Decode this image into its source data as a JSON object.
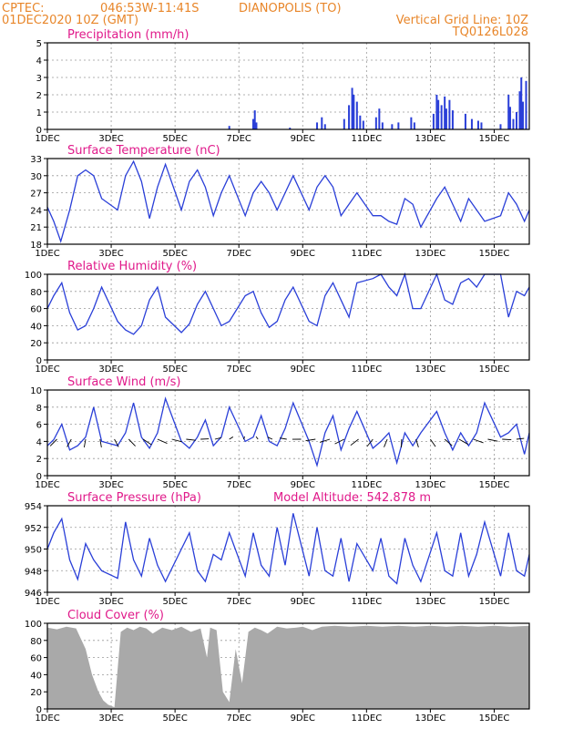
{
  "header": {
    "source": "CPTEC:",
    "coords": "046:53W-11:41S",
    "location": "DIANOPOLIS (TO)",
    "run": "01DEC2020 10Z (GMT)",
    "grid_note": "Vertical Grid Line: 10Z",
    "model": "TQ0126L028"
  },
  "colors": {
    "header": "#e8862a",
    "title": "#e0198a",
    "line": "#2a3fd8",
    "cloud": "#a9a9a9"
  },
  "x_labels": [
    "1DEC",
    "3DEC",
    "5DEC",
    "7DEC",
    "9DEC",
    "11DEC",
    "13DEC",
    "15DEC"
  ],
  "x_label_days": [
    1,
    3,
    5,
    7,
    9,
    11,
    13,
    15
  ],
  "x_range_days": [
    1,
    16.1
  ],
  "chart_data": [
    {
      "type": "bar",
      "title": "Precipitation (mm/h)",
      "ylim": [
        0,
        5
      ],
      "yticks": [
        "0",
        "1",
        "2",
        "3",
        "4",
        "5"
      ],
      "bars": [
        {
          "day": 6.7,
          "v": 0.2
        },
        {
          "day": 7.45,
          "v": 0.6
        },
        {
          "day": 7.5,
          "v": 1.1
        },
        {
          "day": 7.55,
          "v": 0.4
        },
        {
          "day": 8.6,
          "v": 0.1
        },
        {
          "day": 9.45,
          "v": 0.4
        },
        {
          "day": 9.6,
          "v": 0.7
        },
        {
          "day": 9.7,
          "v": 0.3
        },
        {
          "day": 10.3,
          "v": 0.6
        },
        {
          "day": 10.45,
          "v": 1.4
        },
        {
          "day": 10.55,
          "v": 2.4
        },
        {
          "day": 10.6,
          "v": 2.0
        },
        {
          "day": 10.7,
          "v": 1.6
        },
        {
          "day": 10.8,
          "v": 0.8
        },
        {
          "day": 10.9,
          "v": 0.5
        },
        {
          "day": 11.3,
          "v": 0.7
        },
        {
          "day": 11.4,
          "v": 1.2
        },
        {
          "day": 11.5,
          "v": 0.4
        },
        {
          "day": 11.8,
          "v": 0.3
        },
        {
          "day": 12.0,
          "v": 0.4
        },
        {
          "day": 12.4,
          "v": 0.7
        },
        {
          "day": 12.5,
          "v": 0.4
        },
        {
          "day": 13.1,
          "v": 0.9
        },
        {
          "day": 13.2,
          "v": 2.0
        },
        {
          "day": 13.25,
          "v": 1.7
        },
        {
          "day": 13.35,
          "v": 1.4
        },
        {
          "day": 13.45,
          "v": 1.9
        },
        {
          "day": 13.5,
          "v": 1.2
        },
        {
          "day": 13.6,
          "v": 1.7
        },
        {
          "day": 13.7,
          "v": 1.1
        },
        {
          "day": 14.1,
          "v": 0.9
        },
        {
          "day": 14.3,
          "v": 0.6
        },
        {
          "day": 14.5,
          "v": 0.5
        },
        {
          "day": 14.6,
          "v": 0.4
        },
        {
          "day": 15.2,
          "v": 0.3
        },
        {
          "day": 15.45,
          "v": 2.0
        },
        {
          "day": 15.5,
          "v": 1.3
        },
        {
          "day": 15.6,
          "v": 0.6
        },
        {
          "day": 15.7,
          "v": 1.0
        },
        {
          "day": 15.8,
          "v": 2.2
        },
        {
          "day": 15.85,
          "v": 3.0
        },
        {
          "day": 15.9,
          "v": 1.6
        },
        {
          "day": 16.0,
          "v": 2.8
        }
      ]
    },
    {
      "type": "line",
      "title": "Surface Temperature (nC)",
      "ylim": [
        18,
        33
      ],
      "yticks": [
        "18",
        "21",
        "24",
        "27",
        "30",
        "33"
      ],
      "x": [
        1,
        1.2,
        1.42,
        1.7,
        1.95,
        2.2,
        2.45,
        2.7,
        3.2,
        3.45,
        3.7,
        3.95,
        4.2,
        4.45,
        4.7,
        5.2,
        5.45,
        5.7,
        5.95,
        6.2,
        6.45,
        6.7,
        7.2,
        7.45,
        7.7,
        7.95,
        8.2,
        8.45,
        8.7,
        9.2,
        9.45,
        9.7,
        9.95,
        10.2,
        10.45,
        10.7,
        11.2,
        11.45,
        11.7,
        11.95,
        12.2,
        12.45,
        12.7,
        13.2,
        13.45,
        13.7,
        13.95,
        14.2,
        14.45,
        14.7,
        15.2,
        15.45,
        15.7,
        15.95,
        16.1
      ],
      "y": [
        24.5,
        22,
        18.5,
        24,
        30,
        31,
        30,
        26,
        24,
        30,
        32.5,
        29,
        22.5,
        28,
        32,
        24,
        29,
        31,
        28,
        23,
        27,
        30,
        23,
        27,
        29,
        27,
        24,
        27,
        30,
        24,
        28,
        30,
        28,
        23,
        25,
        27,
        23,
        23,
        22,
        21.5,
        26,
        25,
        21,
        26,
        28,
        25,
        22,
        26,
        24,
        22,
        23,
        27,
        25,
        22,
        24
      ]
    },
    {
      "type": "line",
      "title": "Relative Humidity (%)",
      "ylim": [
        0,
        100
      ],
      "yticks": [
        "0",
        "20",
        "40",
        "60",
        "80",
        "100"
      ],
      "x": [
        1,
        1.2,
        1.45,
        1.7,
        1.95,
        2.2,
        2.45,
        2.7,
        3.2,
        3.45,
        3.7,
        3.95,
        4.2,
        4.45,
        4.7,
        5.2,
        5.45,
        5.7,
        5.95,
        6.2,
        6.45,
        6.7,
        7.2,
        7.45,
        7.7,
        7.95,
        8.2,
        8.45,
        8.7,
        9.2,
        9.45,
        9.7,
        9.95,
        10.2,
        10.45,
        10.7,
        11.2,
        11.45,
        11.7,
        11.95,
        12.2,
        12.45,
        12.7,
        13.2,
        13.45,
        13.7,
        13.95,
        14.2,
        14.45,
        14.7,
        15.2,
        15.45,
        15.7,
        15.95,
        16.1
      ],
      "y": [
        60,
        75,
        90,
        55,
        35,
        40,
        60,
        85,
        45,
        35,
        30,
        40,
        70,
        85,
        50,
        32,
        42,
        65,
        80,
        60,
        40,
        45,
        75,
        80,
        55,
        38,
        45,
        70,
        85,
        45,
        40,
        75,
        90,
        70,
        50,
        90,
        95,
        100,
        85,
        75,
        100,
        60,
        60,
        100,
        70,
        65,
        90,
        95,
        85,
        100,
        100,
        50,
        80,
        75,
        85
      ]
    },
    {
      "type": "line",
      "title": "Surface Wind (m/s)",
      "ylim": [
        0,
        10
      ],
      "yticks": [
        "0",
        "2",
        "4",
        "6",
        "8",
        "10"
      ],
      "x": [
        1,
        1.2,
        1.45,
        1.7,
        1.95,
        2.2,
        2.45,
        2.7,
        3.2,
        3.45,
        3.7,
        3.95,
        4.2,
        4.45,
        4.7,
        5.2,
        5.45,
        5.7,
        5.95,
        6.2,
        6.45,
        6.7,
        7.2,
        7.45,
        7.7,
        7.95,
        8.2,
        8.45,
        8.7,
        9.2,
        9.45,
        9.7,
        9.95,
        10.2,
        10.45,
        10.7,
        11.2,
        11.45,
        11.7,
        11.95,
        12.2,
        12.45,
        12.7,
        13.2,
        13.45,
        13.7,
        13.95,
        14.2,
        14.45,
        14.7,
        15.2,
        15.45,
        15.7,
        15.95,
        16.1
      ],
      "y": [
        3.5,
        4.2,
        6,
        3,
        3.5,
        4.5,
        8,
        4,
        3.5,
        5,
        8.5,
        4.5,
        3.2,
        5,
        9,
        4,
        3.2,
        4.5,
        6.5,
        3.5,
        4.5,
        8,
        4,
        4.5,
        7,
        4,
        3.5,
        5.5,
        8.5,
        4,
        1.2,
        5,
        7,
        3,
        5.5,
        7.5,
        3.2,
        4,
        5,
        1.5,
        5,
        3.5,
        5,
        7.5,
        5,
        3,
        5,
        3.5,
        5,
        8.5,
        4.5,
        5,
        6,
        2.5,
        5
      ]
    },
    {
      "type": "line",
      "title": "Surface Pressure (hPa)",
      "annotation": "Model Altitude: 542.878  m",
      "ylim": [
        946,
        954
      ],
      "yticks": [
        "946",
        "948",
        "950",
        "952",
        "954"
      ],
      "x": [
        1,
        1.2,
        1.45,
        1.7,
        1.95,
        2.2,
        2.45,
        2.7,
        3.2,
        3.45,
        3.7,
        3.95,
        4.2,
        4.45,
        4.7,
        5.2,
        5.45,
        5.7,
        5.95,
        6.2,
        6.45,
        6.7,
        7.2,
        7.45,
        7.7,
        7.95,
        8.2,
        8.45,
        8.7,
        9.2,
        9.45,
        9.7,
        9.95,
        10.2,
        10.45,
        10.7,
        11.2,
        11.45,
        11.7,
        11.95,
        12.2,
        12.45,
        12.7,
        13.2,
        13.45,
        13.7,
        13.95,
        14.2,
        14.45,
        14.7,
        15.2,
        15.45,
        15.7,
        15.95,
        16.1
      ],
      "y": [
        950,
        951.5,
        952.8,
        949,
        947.2,
        950.5,
        949,
        948,
        947.3,
        952.5,
        949,
        947.5,
        951,
        948.5,
        947,
        950,
        951.5,
        948,
        947,
        949.5,
        949,
        951.5,
        947.5,
        951.5,
        948.5,
        947.5,
        952,
        948.5,
        953.3,
        947.5,
        952,
        948,
        947.5,
        951,
        947,
        950.5,
        948,
        951,
        947.5,
        946.8,
        951,
        948.5,
        947,
        951.5,
        948,
        947.5,
        951.5,
        947.5,
        949.5,
        952.5,
        947.5,
        951.5,
        948,
        947.5,
        949.5
      ]
    },
    {
      "type": "area",
      "title": "Cloud Cover (%)",
      "ylim": [
        0,
        100
      ],
      "yticks": [
        "0",
        "20",
        "40",
        "60",
        "80",
        "100"
      ],
      "x": [
        1,
        1.3,
        1.6,
        1.9,
        2.2,
        2.4,
        2.6,
        2.75,
        2.9,
        3.1,
        3.3,
        3.5,
        3.7,
        3.9,
        4.1,
        4.3,
        4.6,
        4.9,
        5.2,
        5.5,
        5.8,
        6.0,
        6.1,
        6.3,
        6.5,
        6.7,
        6.9,
        7.1,
        7.3,
        7.5,
        7.7,
        7.9,
        8.2,
        8.5,
        8.8,
        9.0,
        9.3,
        9.6,
        10.0,
        10.5,
        11.0,
        11.5,
        12.0,
        12.5,
        13.0,
        13.5,
        14.0,
        14.5,
        15.0,
        15.5,
        16.1
      ],
      "y": [
        95,
        93,
        96,
        94,
        70,
        40,
        20,
        10,
        5,
        2,
        90,
        95,
        92,
        96,
        94,
        88,
        95,
        92,
        96,
        90,
        94,
        60,
        95,
        92,
        20,
        8,
        70,
        30,
        90,
        95,
        92,
        88,
        96,
        94,
        95,
        96,
        92,
        96,
        97,
        96,
        97,
        96,
        97,
        96,
        97,
        96,
        97,
        96,
        97,
        96,
        97
      ]
    }
  ]
}
